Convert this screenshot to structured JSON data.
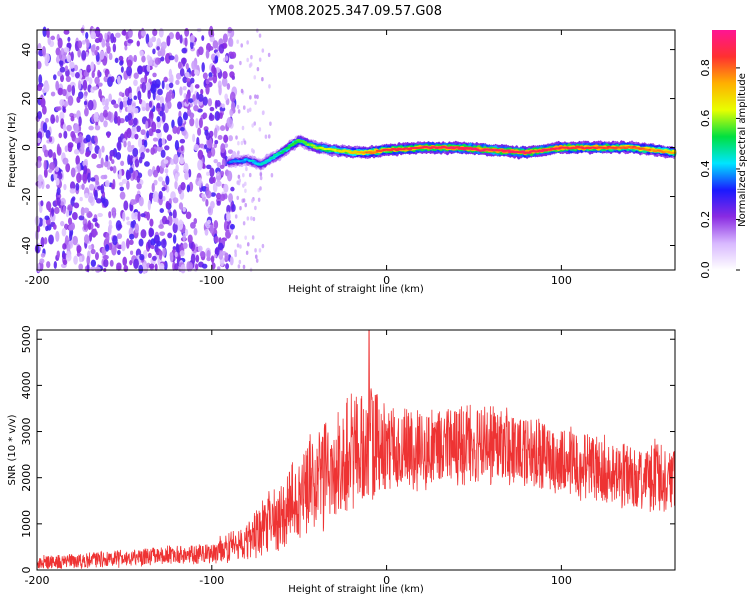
{
  "title": "YM08.2025.347.09.57.G08",
  "chart_data": [
    {
      "type": "heatmap",
      "title": "",
      "xlabel": "Height of straight line (km)",
      "ylabel": "Frequency (Hz)",
      "xlim": [
        -200,
        165
      ],
      "ylim": [
        -50,
        48
      ],
      "xticks": [
        -200,
        -100,
        0,
        100
      ],
      "yticks": [
        -40,
        -20,
        0,
        20,
        40
      ],
      "colorbar": {
        "label": "Normalized spectral amplitude",
        "range": [
          0,
          0.95
        ],
        "ticks": [
          0.0,
          0.2,
          0.4,
          0.6,
          0.8
        ],
        "colors": [
          "#ffffff",
          "#d8b8ff",
          "#8a2be2",
          "#1a1aff",
          "#00e5ff",
          "#00e040",
          "#e8ff00",
          "#ffb000",
          "#ff3030",
          "#ff1493"
        ]
      },
      "noise_region_end_km": -87,
      "signal_ridge": {
        "start_km": -90,
        "points": [
          {
            "x": -90,
            "y": -6
          },
          {
            "x": -80,
            "y": -5
          },
          {
            "x": -72,
            "y": -7
          },
          {
            "x": -62,
            "y": -3
          },
          {
            "x": -50,
            "y": 3
          },
          {
            "x": -40,
            "y": 0
          },
          {
            "x": -30,
            "y": -1
          },
          {
            "x": -20,
            "y": -2
          },
          {
            "x": -10,
            "y": -2
          },
          {
            "x": 0,
            "y": -1
          },
          {
            "x": 20,
            "y": 0
          },
          {
            "x": 40,
            "y": 0
          },
          {
            "x": 60,
            "y": -1
          },
          {
            "x": 80,
            "y": -2
          },
          {
            "x": 100,
            "y": 0
          },
          {
            "x": 120,
            "y": 0
          },
          {
            "x": 140,
            "y": 0
          },
          {
            "x": 165,
            "y": -2
          }
        ],
        "amplitude": [
          {
            "x": -90,
            "a": 0.35
          },
          {
            "x": -70,
            "a": 0.45
          },
          {
            "x": -50,
            "a": 0.55
          },
          {
            "x": -20,
            "a": 0.7
          },
          {
            "x": 0,
            "a": 0.85
          },
          {
            "x": 60,
            "a": 0.9
          },
          {
            "x": 120,
            "a": 0.85
          },
          {
            "x": 165,
            "a": 0.75
          }
        ]
      }
    },
    {
      "type": "line",
      "title": "",
      "xlabel": "Height of straight line (km)",
      "ylabel": "SNR (10 * v/v)",
      "xlim": [
        -200,
        165
      ],
      "ylim": [
        0,
        5200
      ],
      "xticks": [
        -200,
        -100,
        0,
        100
      ],
      "yticks": [
        0,
        1000,
        2000,
        3000,
        4000,
        5000
      ],
      "color": "#ee3333",
      "envelope": [
        {
          "x": -200,
          "mean": 150,
          "spread": 180
        },
        {
          "x": -150,
          "mean": 250,
          "spread": 220
        },
        {
          "x": -100,
          "mean": 380,
          "spread": 280
        },
        {
          "x": -80,
          "mean": 600,
          "spread": 500
        },
        {
          "x": -65,
          "mean": 1100,
          "spread": 900
        },
        {
          "x": -50,
          "mean": 1600,
          "spread": 1200
        },
        {
          "x": -35,
          "mean": 2100,
          "spread": 1400
        },
        {
          "x": -20,
          "mean": 2500,
          "spread": 1500
        },
        {
          "x": -10,
          "mean": 2800,
          "spread": 1600
        },
        {
          "x": 0,
          "mean": 2700,
          "spread": 1100
        },
        {
          "x": 25,
          "mean": 2600,
          "spread": 1000
        },
        {
          "x": 50,
          "mean": 2800,
          "spread": 1000
        },
        {
          "x": 75,
          "mean": 2600,
          "spread": 950
        },
        {
          "x": 100,
          "mean": 2400,
          "spread": 900
        },
        {
          "x": 130,
          "mean": 2100,
          "spread": 900
        },
        {
          "x": 165,
          "mean": 2000,
          "spread": 900
        }
      ],
      "peak": {
        "x": -10,
        "y": 5200
      }
    }
  ]
}
